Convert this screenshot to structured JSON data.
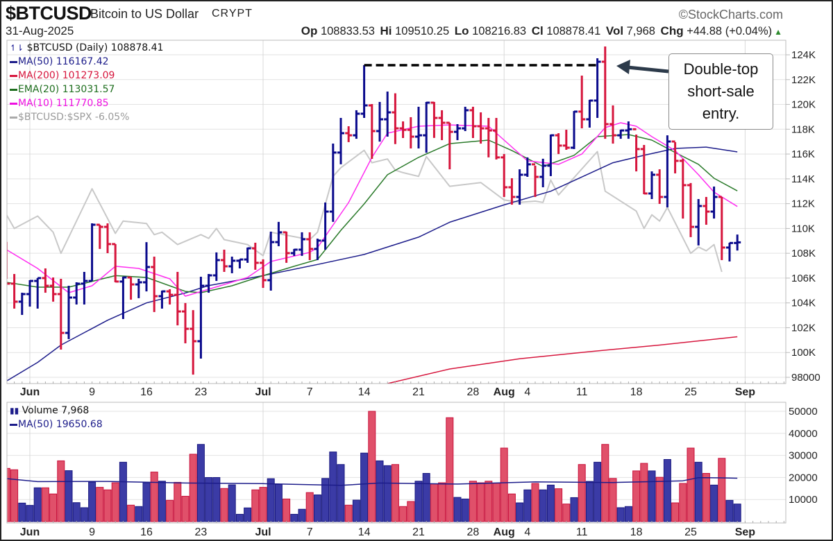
{
  "header": {
    "symbol": "$BTCUSD",
    "name": "Bitcoin to US Dollar",
    "exchange": "CRYPT",
    "copyright": "©StockCharts.com",
    "date": "31-Aug-2025",
    "quote": [
      {
        "key": "Op",
        "value": "108833.53"
      },
      {
        "key": "Hi",
        "value": "109510.25"
      },
      {
        "key": "Lo",
        "value": "108216.83"
      },
      {
        "key": "Cl",
        "value": "108878.41"
      },
      {
        "key": "Vol",
        "value": "7,968"
      },
      {
        "key": "Chg",
        "value": "+44.88 (+0.04%)"
      }
    ],
    "change_direction": "up"
  },
  "legend": {
    "price": "$BTCUSD (Daily) 108878.41",
    "ma50": "MA(50) 116167.42",
    "ma200": "MA(200) 101273.09",
    "ema20": "EMA(20) 113031.57",
    "ma10": "MA(10) 111770.85",
    "ratio": "$BTCUSD:$SPX -6.05%",
    "volume": "Volume 7,968",
    "vol_ma50": "MA(50) 19650.68"
  },
  "annotation": {
    "lines": [
      "Double-top",
      "short-sale",
      "entry."
    ],
    "double_top_level": 123.16,
    "dashed_from_day": 43,
    "dashed_to_day": 73
  },
  "colors": {
    "up": "#0a0a8c",
    "down": "#d6153c",
    "vol_up": "#3b3ba6",
    "vol_down": "#e0506a",
    "ma50": "#1c1c8a",
    "ma200": "#d6153c",
    "ema20": "#2a7a2a",
    "ma10": "#ff2cf0",
    "ratio": "#c8c8c8",
    "vol_ma": "#1c1c8a",
    "grid": "#e2e2e2",
    "callout_arrow": "#2c3a4a"
  },
  "chart_data": {
    "type": "ohlc",
    "title": "$BTCUSD (Daily)",
    "price_unit": "thousand USD",
    "x_unit": "days from 2025-06-01",
    "first_day": -3,
    "first_open": 108.3,
    "bars_hlc": [
      [
        108.92,
        105.94,
        105.55
      ],
      [
        106.33,
        103.54,
        104.1
      ],
      [
        104.82,
        103.03,
        104.71
      ],
      [
        105.83,
        103.7,
        105.77
      ],
      [
        106.0,
        103.54,
        106.0
      ],
      [
        106.78,
        104.82,
        105.38
      ],
      [
        106.05,
        104.1,
        104.71
      ],
      [
        105.94,
        100.24,
        101.58
      ],
      [
        105.38,
        101.08,
        104.43
      ],
      [
        105.66,
        103.87,
        105.55
      ],
      [
        106.5,
        103.87,
        105.77
      ],
      [
        110.41,
        105.77,
        110.3
      ],
      [
        110.3,
        108.35,
        110.13
      ],
      [
        110.41,
        108.01,
        108.74
      ],
      [
        108.74,
        105.66,
        105.72
      ],
      [
        106.11,
        102.7,
        106.05
      ],
      [
        106.11,
        104.26,
        105.49
      ],
      [
        105.94,
        104.38,
        105.66
      ],
      [
        108.9,
        104.93,
        106.89
      ],
      [
        107.73,
        103.26,
        104.54
      ],
      [
        104.99,
        103.54,
        104.93
      ],
      [
        105.1,
        103.87,
        104.65
      ],
      [
        106.5,
        102.19,
        103.31
      ],
      [
        103.99,
        100.74,
        101.91
      ],
      [
        103.42,
        98.22,
        100.91
      ],
      [
        106.11,
        99.51,
        105.38
      ],
      [
        106.33,
        104.82,
        106.22
      ],
      [
        108.07,
        105.77,
        107.45
      ],
      [
        108.29,
        106.5,
        106.95
      ],
      [
        107.73,
        106.39,
        107.4
      ],
      [
        107.51,
        106.78,
        107.5
      ],
      [
        108.46,
        107.23,
        108.4
      ],
      [
        108.85,
        106.67,
        107.23
      ],
      [
        107.51,
        105.21,
        105.83
      ],
      [
        109.74,
        104.99,
        108.9
      ],
      [
        110.53,
        108.57,
        109.69
      ],
      [
        109.74,
        107.23,
        108.01
      ],
      [
        108.35,
        107.79,
        108.29
      ],
      [
        109.69,
        107.79,
        109.13
      ],
      [
        109.69,
        107.45,
        108.35
      ],
      [
        109.18,
        107.45,
        109.02
      ],
      [
        112.09,
        108.29,
        111.36
      ],
      [
        116.84,
        110.53,
        116.12
      ],
      [
        118.91,
        115.17,
        117.68
      ],
      [
        118.24,
        116.96,
        117.51
      ],
      [
        119.53,
        117.23,
        119.25
      ],
      [
        123.16,
        118.91,
        119.92
      ],
      [
        120.03,
        115.61,
        117.85
      ],
      [
        120.2,
        117.0,
        118.8
      ],
      [
        121.04,
        117.4,
        119.36
      ],
      [
        120.9,
        116.8,
        118.07
      ],
      [
        118.63,
        117.29,
        117.95
      ],
      [
        118.97,
        116.45,
        117.4
      ],
      [
        119.81,
        116.45,
        117.51
      ],
      [
        120.2,
        116.1,
        120.14
      ],
      [
        120.2,
        117.3,
        118.91
      ],
      [
        119.53,
        117.12,
        118.52
      ],
      [
        118.52,
        114.77,
        117.79
      ],
      [
        118.41,
        117.12,
        118.07
      ],
      [
        119.81,
        117.85,
        119.53
      ],
      [
        119.81,
        117.29,
        118.24
      ],
      [
        119.36,
        116.84,
        118.07
      ],
      [
        118.91,
        115.73,
        117.9
      ],
      [
        118.91,
        115.56,
        115.73
      ],
      [
        116.0,
        112.54,
        113.32
      ],
      [
        114.05,
        111.92,
        112.54
      ],
      [
        114.77,
        111.92,
        114.33
      ],
      [
        115.73,
        114.16,
        115.17
      ],
      [
        115.06,
        112.54,
        114.16
      ],
      [
        115.62,
        113.32,
        115.06
      ],
      [
        117.57,
        114.22,
        117.51
      ],
      [
        117.68,
        116.0,
        116.68
      ],
      [
        117.96,
        116.34,
        116.51
      ],
      [
        119.47,
        116.4,
        119.42
      ],
      [
        122.32,
        118.07,
        118.8
      ],
      [
        120.37,
        118.13,
        120.31
      ],
      [
        123.72,
        118.91,
        123.44
      ],
      [
        124.67,
        117.23,
        118.41
      ],
      [
        119.92,
        116.84,
        117.51
      ],
      [
        117.96,
        117.23,
        117.9
      ],
      [
        118.63,
        117.23,
        118.0
      ],
      [
        117.57,
        114.6,
        116.4
      ],
      [
        116.73,
        112.76,
        112.82
      ],
      [
        114.6,
        112.37,
        114.33
      ],
      [
        114.77,
        111.98,
        112.54
      ],
      [
        117.51,
        111.7,
        117.01
      ],
      [
        116.96,
        114.44,
        115.45
      ],
      [
        115.62,
        110.8,
        113.49
      ],
      [
        113.66,
        109.3,
        110.13
      ],
      [
        112.37,
        108.63,
        111.81
      ],
      [
        112.54,
        110.3,
        111.36
      ],
      [
        113.38,
        110.8,
        112.54
      ],
      [
        112.54,
        107.45,
        108.46
      ],
      [
        108.85,
        107.34,
        108.83
      ],
      [
        109.51,
        108.22,
        108.88
      ]
    ],
    "volume": [
      24120,
      23500,
      8390,
      7350,
      15320,
      15320,
      12530,
      27540,
      23090,
      8590,
      6310,
      17910,
      15530,
      14390,
      17600,
      26920,
      7450,
      6830,
      17600,
      22460,
      18320,
      9630,
      17800,
      11490,
      30540,
      34990,
      19980,
      19980,
      15010,
      16670,
      3310,
      6210,
      14390,
      15530,
      19460,
      16870,
      10250,
      3310,
      5590,
      13150,
      12110,
      19570,
      31570,
      25880,
      7450,
      9730,
      31060,
      50000,
      27540,
      25360,
      25880,
      6830,
      9110,
      18320,
      21850,
      17080,
      17600,
      47100,
      10970,
      10250,
      18320,
      17600,
      18320,
      17390,
      33330,
      12530,
      8490,
      14390,
      17290,
      14390,
      16560,
      14900,
      7970,
      10870,
      25880,
      18220,
      26920,
      34990,
      19570,
      6310,
      6830,
      22980,
      26400,
      22980,
      20080,
      28160,
      8490,
      17290,
      33330,
      26920,
      21850,
      16560,
      28680,
      9630,
      7968
    ],
    "overlays": {
      "ma50": [
        [
          -3,
          97.7
        ],
        [
          1,
          99.2
        ],
        [
          4,
          100.6
        ],
        [
          10,
          102.6
        ],
        [
          15,
          104.0
        ],
        [
          20,
          104.8
        ],
        [
          23,
          105.4
        ],
        [
          30,
          106.2
        ],
        [
          37,
          107.1
        ],
        [
          43,
          107.9
        ],
        [
          50,
          109.3
        ],
        [
          54,
          110.5
        ],
        [
          61,
          111.9
        ],
        [
          67,
          113.0
        ],
        [
          75,
          115.3
        ],
        [
          79,
          115.9
        ],
        [
          83,
          116.45
        ],
        [
          87,
          116.56
        ],
        [
          91,
          116.17
        ]
      ],
      "ma200": [
        [
          46,
          97.5
        ],
        [
          54,
          98.67
        ],
        [
          63,
          99.5
        ],
        [
          72,
          100.07
        ],
        [
          81,
          100.6
        ],
        [
          91,
          101.27
        ]
      ],
      "ema20": [
        [
          -3,
          105.66
        ],
        [
          1,
          105.27
        ],
        [
          5,
          105.27
        ],
        [
          11,
          106.2
        ],
        [
          15,
          106.05
        ],
        [
          20,
          104.93
        ],
        [
          22,
          104.82
        ],
        [
          26,
          105.38
        ],
        [
          30,
          106.2
        ],
        [
          34,
          106.95
        ],
        [
          37,
          107.5
        ],
        [
          40,
          109.85
        ],
        [
          43,
          111.98
        ],
        [
          46,
          114.33
        ],
        [
          50,
          115.73
        ],
        [
          54,
          116.84
        ],
        [
          59,
          117.12
        ],
        [
          62,
          116.28
        ],
        [
          66,
          115.0
        ],
        [
          70,
          115.9
        ],
        [
          73,
          117.4
        ],
        [
          77,
          117.57
        ],
        [
          80,
          117.12
        ],
        [
          83,
          116.12
        ],
        [
          86,
          115.17
        ],
        [
          88,
          114.05
        ],
        [
          91,
          113.03
        ]
      ],
      "ma10": [
        [
          -3,
          108.29
        ],
        [
          1,
          106.78
        ],
        [
          5,
          104.82
        ],
        [
          8,
          105.38
        ],
        [
          11,
          106.95
        ],
        [
          14,
          106.78
        ],
        [
          18,
          105.94
        ],
        [
          20,
          104.54
        ],
        [
          23,
          105.1
        ],
        [
          28,
          106.05
        ],
        [
          31,
          107.34
        ],
        [
          36,
          108.07
        ],
        [
          37,
          108.46
        ],
        [
          41,
          112.09
        ],
        [
          44,
          115.73
        ],
        [
          46,
          117.68
        ],
        [
          50,
          118.24
        ],
        [
          54,
          118.35
        ],
        [
          59,
          118.24
        ],
        [
          61,
          117.12
        ],
        [
          64,
          115.45
        ],
        [
          68,
          115.17
        ],
        [
          71,
          116.0
        ],
        [
          74,
          118.13
        ],
        [
          76,
          118.52
        ],
        [
          78,
          118.24
        ],
        [
          80,
          117.4
        ],
        [
          83,
          116.28
        ],
        [
          86,
          114.33
        ],
        [
          88,
          112.93
        ],
        [
          91,
          111.77
        ]
      ],
      "ratio": [
        [
          -3,
          111.1
        ],
        [
          -2,
          110.0
        ],
        [
          1,
          111.0
        ],
        [
          3,
          109.7
        ],
        [
          4,
          108.0
        ],
        [
          8,
          113.2
        ],
        [
          11,
          109.6
        ],
        [
          12,
          110.6
        ],
        [
          15,
          110.4
        ],
        [
          16,
          109.5
        ],
        [
          17,
          109.7
        ],
        [
          19,
          108.7
        ],
        [
          22,
          109.5
        ],
        [
          23,
          109.2
        ],
        [
          24,
          110.0
        ],
        [
          25,
          109.1
        ],
        [
          28,
          108.7
        ],
        [
          30,
          107.8
        ],
        [
          31,
          109.7
        ],
        [
          36,
          109.1
        ],
        [
          37,
          109.7
        ],
        [
          39,
          114.2
        ],
        [
          40,
          114.9
        ],
        [
          43,
          116.3
        ],
        [
          44,
          115.3
        ],
        [
          46,
          115.6
        ],
        [
          47,
          114.7
        ],
        [
          48,
          114.5
        ],
        [
          50,
          114.2
        ],
        [
          51,
          115.8
        ],
        [
          54,
          113.4
        ],
        [
          58,
          113.7
        ],
        [
          61,
          112.3
        ],
        [
          63,
          112.1
        ],
        [
          65,
          112.2
        ],
        [
          66,
          112.1
        ],
        [
          67,
          113.9
        ],
        [
          68,
          112.7
        ],
        [
          73,
          116.2
        ],
        [
          74,
          113.0
        ],
        [
          78,
          111.4
        ],
        [
          79,
          110.0
        ],
        [
          80,
          111.1
        ],
        [
          81,
          110.6
        ],
        [
          82,
          111.7
        ],
        [
          85,
          108.0
        ],
        [
          86,
          108.5
        ],
        [
          87,
          108.2
        ],
        [
          88,
          108.7
        ],
        [
          89,
          106.5
        ]
      ],
      "vol_ma50": [
        [
          -3,
          19460
        ],
        [
          1,
          18120
        ],
        [
          10,
          18200
        ],
        [
          20,
          17500
        ],
        [
          30,
          17200
        ],
        [
          40,
          16400
        ],
        [
          45,
          17500
        ],
        [
          55,
          17000
        ],
        [
          65,
          18000
        ],
        [
          75,
          17700
        ],
        [
          80,
          18100
        ],
        [
          84,
          18500
        ],
        [
          86,
          19900
        ],
        [
          89,
          19800
        ],
        [
          91,
          19650
        ]
      ]
    },
    "price_axis": {
      "ylim": [
        97.9,
        125.1
      ],
      "ticks": [
        {
          "value": 124,
          "label": "124K"
        },
        {
          "value": 122,
          "label": "122K"
        },
        {
          "value": 120,
          "label": "120K"
        },
        {
          "value": 118,
          "label": "118K"
        },
        {
          "value": 116,
          "label": "116K"
        },
        {
          "value": 114,
          "label": "114K"
        },
        {
          "value": 112,
          "label": "112K"
        },
        {
          "value": 110,
          "label": "110K"
        },
        {
          "value": 108,
          "label": "108K"
        },
        {
          "value": 106,
          "label": "106K"
        },
        {
          "value": 104,
          "label": "104K"
        },
        {
          "value": 102,
          "label": "102K"
        },
        {
          "value": 100,
          "label": "100K"
        },
        {
          "value": 98,
          "label": "98000"
        }
      ]
    },
    "volume_axis": {
      "ylim": [
        0,
        53700
      ],
      "ticks": [
        {
          "value": 50000,
          "label": "50000"
        },
        {
          "value": 40000,
          "label": "40000"
        },
        {
          "value": 30000,
          "label": "30000"
        },
        {
          "value": 20000,
          "label": "20000"
        },
        {
          "value": 10000,
          "label": "10000"
        }
      ]
    },
    "x_ticks": [
      {
        "day": 0,
        "label": "Jun",
        "bold": true
      },
      {
        "day": 8,
        "label": "9"
      },
      {
        "day": 15,
        "label": "16"
      },
      {
        "day": 22,
        "label": "23"
      },
      {
        "day": 30,
        "label": "Jul",
        "bold": true
      },
      {
        "day": 36,
        "label": "7"
      },
      {
        "day": 43,
        "label": "14"
      },
      {
        "day": 50,
        "label": "21"
      },
      {
        "day": 57,
        "label": "28"
      },
      {
        "day": 61,
        "label": "Aug",
        "bold": true
      },
      {
        "day": 64,
        "label": "4"
      },
      {
        "day": 71,
        "label": "11"
      },
      {
        "day": 78,
        "label": "18"
      },
      {
        "day": 85,
        "label": "25"
      },
      {
        "day": 92,
        "label": "Sep",
        "bold": true
      }
    ],
    "month_gridlines": [
      0,
      30,
      61,
      92
    ]
  }
}
